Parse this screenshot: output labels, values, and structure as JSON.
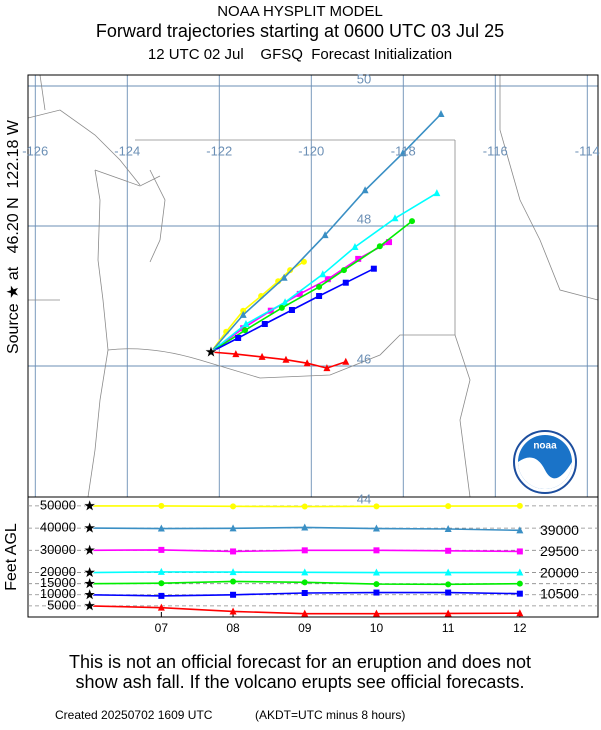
{
  "chart_data": {
    "type": "trajectory",
    "title": "NOAA HYSPLIT MODEL",
    "subtitle": "Forward trajectories starting at 0600 UTC 03 Jul 25",
    "initialization": "12 UTC 02 Jul    GFSQ  Forecast Initialization",
    "source_label": "Source ★ at   46.20 N  122.18 W",
    "source": {
      "lat": 46.2,
      "lon": -122.18
    },
    "lonticks": [
      -126,
      -124,
      -122,
      -120,
      -118,
      -116,
      -114
    ],
    "latticks": [
      44,
      46,
      48,
      50
    ],
    "logo_text": "noaa",
    "ylabel": "Feet AGL",
    "x": [
      6,
      7,
      8,
      9,
      10,
      11,
      12
    ],
    "xlim": [
      5.14,
      13.09
    ],
    "xticks": [
      {
        "value": 7,
        "label": "07"
      },
      {
        "value": 8,
        "label": "08"
      },
      {
        "value": 9,
        "label": "09"
      },
      {
        "value": 10,
        "label": "10"
      },
      {
        "value": 11,
        "label": "11"
      },
      {
        "value": 12,
        "label": "12"
      }
    ],
    "ylim": [
      0,
      54000
    ],
    "yticks": [
      5000,
      10000,
      15000,
      20000,
      30000,
      40000,
      50000
    ],
    "end_labels": [
      39000,
      29500,
      20000,
      10500
    ],
    "series": [
      {
        "color": "#ffff00",
        "marker": "circle",
        "lon": [
          -122.18,
          -121.85,
          -121.48,
          -121.09,
          -120.72,
          -120.46,
          -120.16
        ],
        "lat": [
          46.2,
          46.49,
          46.79,
          47.0,
          47.21,
          47.37,
          47.49
        ],
        "heights": [
          50000,
          50000,
          49800,
          49700,
          49800,
          49900,
          50000
        ]
      },
      {
        "color": "#3a8fc4",
        "marker": "triangle",
        "lon": [
          -122.18,
          -121.48,
          -120.59,
          -119.7,
          -118.83,
          -118.01,
          -117.18
        ],
        "lat": [
          46.2,
          46.73,
          47.26,
          47.87,
          48.51,
          49.04,
          49.6
        ],
        "heights": [
          40000,
          39800,
          39900,
          40300,
          39800,
          39600,
          39000
        ]
      },
      {
        "color": "#ff00ff",
        "marker": "square",
        "lon": [
          -122.18,
          -121.48,
          -120.88,
          -120.25,
          -119.64,
          -118.98,
          -118.31
        ],
        "lat": [
          46.2,
          46.54,
          46.79,
          47.03,
          47.24,
          47.53,
          47.77
        ],
        "heights": [
          30000,
          30200,
          29500,
          30000,
          30000,
          29800,
          29500
        ]
      },
      {
        "color": "#00ffff",
        "marker": "triangle",
        "lon": [
          -122.18,
          -121.42,
          -120.57,
          -119.75,
          -119.05,
          -118.18,
          -117.27
        ],
        "lat": [
          46.2,
          46.6,
          46.91,
          47.31,
          47.7,
          48.11,
          48.47
        ],
        "heights": [
          20000,
          20300,
          20200,
          20100,
          20000,
          20000,
          20000
        ]
      },
      {
        "color": "#00ee00",
        "marker": "circle",
        "lon": [
          -122.18,
          -121.44,
          -120.64,
          -119.83,
          -119.29,
          -118.51,
          -117.81
        ],
        "lat": [
          46.2,
          46.51,
          46.83,
          47.13,
          47.37,
          47.71,
          48.07
        ],
        "heights": [
          15000,
          15200,
          16000,
          15600,
          14800,
          14700,
          15000
        ]
      },
      {
        "color": "#0000ff",
        "marker": "square",
        "lon": [
          -122.18,
          -121.59,
          -121.01,
          -120.42,
          -119.83,
          -119.25,
          -118.64
        ],
        "lat": [
          46.2,
          46.4,
          46.6,
          46.8,
          47.0,
          47.19,
          47.39
        ],
        "heights": [
          10000,
          9500,
          10000,
          10800,
          11000,
          11000,
          10500
        ]
      },
      {
        "color": "#ff0000",
        "marker": "triangle",
        "lon": [
          -122.18,
          -121.64,
          -121.07,
          -120.55,
          -120.09,
          -119.66,
          -119.25
        ],
        "lat": [
          46.2,
          46.17,
          46.13,
          46.09,
          46.04,
          45.97,
          46.06
        ],
        "heights": [
          5000,
          4200,
          2500,
          1500,
          1500,
          1600,
          1700
        ]
      }
    ],
    "disclaimer": [
      "This is not an official forecast for an eruption and does not",
      "show ash fall. If the volcano erupts see official forecasts."
    ],
    "created": "Created 20250702 1609 UTC",
    "timezone_note": "(AKDT=UTC minus 8 hours)"
  }
}
